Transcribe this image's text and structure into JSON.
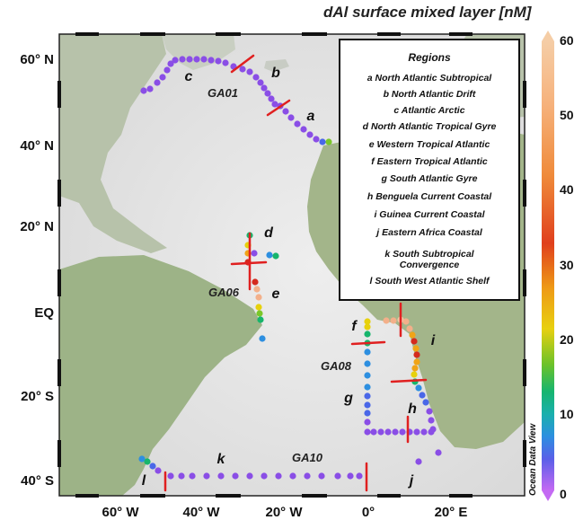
{
  "title": "dAl surface mixed layer [nM]",
  "colorbar": {
    "ticks": [
      "60",
      "50",
      "40",
      "30",
      "20",
      "10",
      "0"
    ],
    "stops": [
      "#f2c9a6",
      "#f6b27c",
      "#f08d3a",
      "#e44a1d",
      "#d42a1e",
      "#f0a417",
      "#e7d10c",
      "#7ac72a",
      "#17b56c",
      "#1ab0a9",
      "#2d8fe0",
      "#4a67e8",
      "#8a4ee6",
      "#c46af3"
    ],
    "credit": "Ocean Data View"
  },
  "lat_labels": [
    "60° N",
    "40° N",
    "20° N",
    "EQ",
    "20° S",
    "40° S"
  ],
  "lon_labels": [
    "60° W",
    "40° W",
    "20° W",
    "0°",
    "20° E"
  ],
  "cruises": [
    "GA01",
    "GA06",
    "GA08",
    "GA10"
  ],
  "region_letters": [
    "a",
    "b",
    "c",
    "d",
    "e",
    "f",
    "g",
    "h",
    "i",
    "j",
    "k",
    "l"
  ],
  "legend": {
    "heading": "Regions",
    "items": [
      {
        "letter": "a",
        "name": "North Atlantic Subtropical"
      },
      {
        "letter": "b",
        "name": "North Atlantic Drift"
      },
      {
        "letter": "c",
        "name": "Atlantic Arctic"
      },
      {
        "letter": "d",
        "name": "North Atlantic Tropical Gyre"
      },
      {
        "letter": "e",
        "name": "Western Tropical Atlantic"
      },
      {
        "letter": "f",
        "name": "Eastern Tropical Atlantic"
      },
      {
        "letter": "g",
        "name": "South Atlantic Gyre"
      },
      {
        "letter": "h",
        "name": "Benguela Current Coastal"
      },
      {
        "letter": "i",
        "name": "Guinea Current Coastal"
      },
      {
        "letter": "j",
        "name": "Eastern Africa Coastal"
      },
      {
        "letter": "k",
        "name": "South Subtropical Convergence"
      },
      {
        "letter": "l",
        "name": "South West Atlantic Shelf"
      }
    ]
  },
  "colors": {
    "ocean": "#e6e6e6",
    "land": "#9fb58a",
    "divider": "#e02020",
    "frame": "#222222"
  }
}
